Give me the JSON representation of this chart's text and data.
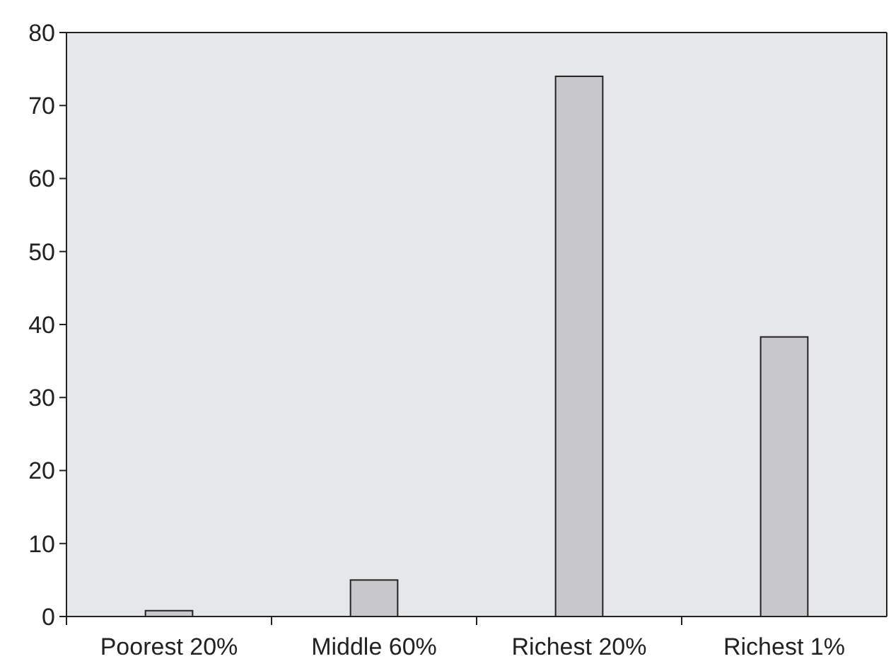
{
  "chart_data": {
    "type": "bar",
    "categories": [
      "Poorest 20%",
      "Middle 60%",
      "Richest 20%",
      "Richest 1%"
    ],
    "values": [
      0.8,
      5,
      74,
      38.3
    ],
    "color": "#c8c8ca",
    "ylim": [
      0,
      80
    ],
    "yticks": [
      0,
      10,
      20,
      30,
      40,
      50,
      60,
      70,
      80
    ],
    "grid": false
  }
}
